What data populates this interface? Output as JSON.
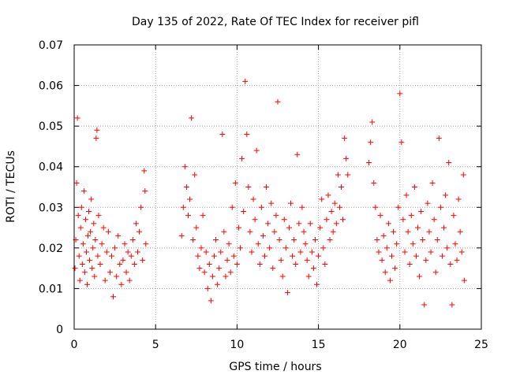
{
  "chart_data": {
    "type": "scatter",
    "title": "Day 135 of 2022, Rate Of TEC Index for receiver pifl",
    "xlabel": "GPS time / hours",
    "ylabel": "ROTI / TECUs",
    "xlim": [
      0,
      25
    ],
    "ylim": [
      0,
      0.07
    ],
    "xticks": [
      "0",
      "5",
      "10",
      "15",
      "20",
      "25"
    ],
    "yticks": [
      "0",
      "0.01",
      "0.02",
      "0.03",
      "0.04",
      "0.05",
      "0.06",
      "0.07"
    ],
    "grid": true,
    "marker": "+",
    "color": "#ff0000",
    "series": [
      {
        "points": [
          [
            0.05,
            0.015
          ],
          [
            0.1,
            0.022
          ],
          [
            0.15,
            0.036
          ],
          [
            0.2,
            0.052
          ],
          [
            0.25,
            0.028
          ],
          [
            0.3,
            0.018
          ],
          [
            0.35,
            0.012
          ],
          [
            0.4,
            0.025
          ],
          [
            0.45,
            0.03
          ],
          [
            0.5,
            0.016
          ],
          [
            0.55,
            0.021
          ],
          [
            0.6,
            0.034
          ],
          [
            0.65,
            0.014
          ],
          [
            0.7,
            0.027
          ],
          [
            0.75,
            0.019
          ],
          [
            0.8,
            0.011
          ],
          [
            0.85,
            0.023
          ],
          [
            0.9,
            0.029
          ],
          [
            0.95,
            0.017
          ],
          [
            1.0,
            0.024
          ],
          [
            1.05,
            0.032
          ],
          [
            1.1,
            0.015
          ],
          [
            1.15,
            0.02
          ],
          [
            1.2,
            0.026
          ],
          [
            1.25,
            0.013
          ],
          [
            1.3,
            0.022
          ],
          [
            1.35,
            0.047
          ],
          [
            1.4,
            0.049
          ],
          [
            1.45,
            0.018
          ],
          [
            1.5,
            0.028
          ],
          [
            1.6,
            0.016
          ],
          [
            1.7,
            0.021
          ],
          [
            1.8,
            0.025
          ],
          [
            1.9,
            0.012
          ],
          [
            2.0,
            0.019
          ],
          [
            2.1,
            0.024
          ],
          [
            2.2,
            0.014
          ],
          [
            2.3,
            0.018
          ],
          [
            2.4,
            0.008
          ],
          [
            2.5,
            0.02
          ],
          [
            2.6,
            0.013
          ],
          [
            2.7,
            0.023
          ],
          [
            2.8,
            0.016
          ],
          [
            2.9,
            0.011
          ],
          [
            3.0,
            0.017
          ],
          [
            3.1,
            0.021
          ],
          [
            3.2,
            0.014
          ],
          [
            3.3,
            0.019
          ],
          [
            3.4,
            0.012
          ],
          [
            3.5,
            0.018
          ],
          [
            3.6,
            0.022
          ],
          [
            3.7,
            0.016
          ],
          [
            3.8,
            0.026
          ],
          [
            3.9,
            0.019
          ],
          [
            4.0,
            0.024
          ],
          [
            4.1,
            0.03
          ],
          [
            4.2,
            0.017
          ],
          [
            4.3,
            0.039
          ],
          [
            4.35,
            0.034
          ],
          [
            4.4,
            0.021
          ],
          [
            6.6,
            0.023
          ],
          [
            6.7,
            0.03
          ],
          [
            6.8,
            0.04
          ],
          [
            6.9,
            0.035
          ],
          [
            7.0,
            0.028
          ],
          [
            7.1,
            0.032
          ],
          [
            7.2,
            0.052
          ],
          [
            7.3,
            0.022
          ],
          [
            7.4,
            0.038
          ],
          [
            7.5,
            0.025
          ],
          [
            7.6,
            0.018
          ],
          [
            7.7,
            0.015
          ],
          [
            7.8,
            0.02
          ],
          [
            7.9,
            0.028
          ],
          [
            8.0,
            0.014
          ],
          [
            8.1,
            0.019
          ],
          [
            8.2,
            0.01
          ],
          [
            8.3,
            0.016
          ],
          [
            8.4,
            0.007
          ],
          [
            8.5,
            0.013
          ],
          [
            8.6,
            0.018
          ],
          [
            8.7,
            0.022
          ],
          [
            8.8,
            0.011
          ],
          [
            8.9,
            0.015
          ],
          [
            9.0,
            0.019
          ],
          [
            9.1,
            0.048
          ],
          [
            9.2,
            0.024
          ],
          [
            9.3,
            0.013
          ],
          [
            9.4,
            0.017
          ],
          [
            9.5,
            0.021
          ],
          [
            9.6,
            0.014
          ],
          [
            9.7,
            0.03
          ],
          [
            9.8,
            0.018
          ],
          [
            9.9,
            0.036
          ],
          [
            10.0,
            0.016
          ],
          [
            10.1,
            0.025
          ],
          [
            10.2,
            0.02
          ],
          [
            10.3,
            0.042
          ],
          [
            10.4,
            0.029
          ],
          [
            10.5,
            0.061
          ],
          [
            10.6,
            0.048
          ],
          [
            10.7,
            0.035
          ],
          [
            10.8,
            0.024
          ],
          [
            10.9,
            0.019
          ],
          [
            11.0,
            0.032
          ],
          [
            11.1,
            0.027
          ],
          [
            11.2,
            0.044
          ],
          [
            11.3,
            0.021
          ],
          [
            11.4,
            0.016
          ],
          [
            11.5,
            0.03
          ],
          [
            11.6,
            0.023
          ],
          [
            11.7,
            0.018
          ],
          [
            11.8,
            0.035
          ],
          [
            11.9,
            0.026
          ],
          [
            12.0,
            0.02
          ],
          [
            12.1,
            0.031
          ],
          [
            12.2,
            0.015
          ],
          [
            12.3,
            0.024
          ],
          [
            12.4,
            0.028
          ],
          [
            12.5,
            0.056
          ],
          [
            12.6,
            0.022
          ],
          [
            12.7,
            0.017
          ],
          [
            12.8,
            0.013
          ],
          [
            12.9,
            0.027
          ],
          [
            13.0,
            0.02
          ],
          [
            13.1,
            0.009
          ],
          [
            13.2,
            0.025
          ],
          [
            13.3,
            0.031
          ],
          [
            13.4,
            0.018
          ],
          [
            13.5,
            0.022
          ],
          [
            13.6,
            0.016
          ],
          [
            13.7,
            0.043
          ],
          [
            13.8,
            0.026
          ],
          [
            13.9,
            0.019
          ],
          [
            14.0,
            0.03
          ],
          [
            14.1,
            0.024
          ],
          [
            14.2,
            0.021
          ],
          [
            14.3,
            0.017
          ],
          [
            14.4,
            0.013
          ],
          [
            14.5,
            0.026
          ],
          [
            14.6,
            0.019
          ],
          [
            14.7,
            0.015
          ],
          [
            14.8,
            0.022
          ],
          [
            14.9,
            0.011
          ],
          [
            15.0,
            0.018
          ],
          [
            15.1,
            0.025
          ],
          [
            15.2,
            0.032
          ],
          [
            15.3,
            0.02
          ],
          [
            15.4,
            0.016
          ],
          [
            15.5,
            0.027
          ],
          [
            15.6,
            0.033
          ],
          [
            15.7,
            0.022
          ],
          [
            15.8,
            0.029
          ],
          [
            15.9,
            0.024
          ],
          [
            16.0,
            0.031
          ],
          [
            16.1,
            0.026
          ],
          [
            16.2,
            0.038
          ],
          [
            16.3,
            0.03
          ],
          [
            16.4,
            0.035
          ],
          [
            16.5,
            0.027
          ],
          [
            16.6,
            0.047
          ],
          [
            16.7,
            0.042
          ],
          [
            16.8,
            0.038
          ],
          [
            18.1,
            0.041
          ],
          [
            18.2,
            0.046
          ],
          [
            18.3,
            0.051
          ],
          [
            18.4,
            0.036
          ],
          [
            18.5,
            0.03
          ],
          [
            18.6,
            0.022
          ],
          [
            18.7,
            0.019
          ],
          [
            18.8,
            0.028
          ],
          [
            18.9,
            0.017
          ],
          [
            19.0,
            0.023
          ],
          [
            19.1,
            0.014
          ],
          [
            19.2,
            0.02
          ],
          [
            19.3,
            0.026
          ],
          [
            19.4,
            0.012
          ],
          [
            19.5,
            0.018
          ],
          [
            19.6,
            0.024
          ],
          [
            19.7,
            0.015
          ],
          [
            19.8,
            0.021
          ],
          [
            19.9,
            0.03
          ],
          [
            20.0,
            0.058
          ],
          [
            20.1,
            0.046
          ],
          [
            20.2,
            0.027
          ],
          [
            20.3,
            0.019
          ],
          [
            20.4,
            0.033
          ],
          [
            20.5,
            0.024
          ],
          [
            20.6,
            0.016
          ],
          [
            20.7,
            0.028
          ],
          [
            20.8,
            0.021
          ],
          [
            20.9,
            0.035
          ],
          [
            21.0,
            0.018
          ],
          [
            21.1,
            0.025
          ],
          [
            21.2,
            0.013
          ],
          [
            21.3,
            0.029
          ],
          [
            21.4,
            0.022
          ],
          [
            21.5,
            0.006
          ],
          [
            21.6,
            0.017
          ],
          [
            21.7,
            0.031
          ],
          [
            21.8,
            0.024
          ],
          [
            21.9,
            0.019
          ],
          [
            22.0,
            0.036
          ],
          [
            22.1,
            0.027
          ],
          [
            22.2,
            0.014
          ],
          [
            22.3,
            0.022
          ],
          [
            22.4,
            0.047
          ],
          [
            22.5,
            0.03
          ],
          [
            22.6,
            0.018
          ],
          [
            22.7,
            0.025
          ],
          [
            22.8,
            0.033
          ],
          [
            22.9,
            0.02
          ],
          [
            23.0,
            0.041
          ],
          [
            23.1,
            0.016
          ],
          [
            23.2,
            0.006
          ],
          [
            23.3,
            0.028
          ],
          [
            23.4,
            0.021
          ],
          [
            23.5,
            0.017
          ],
          [
            23.6,
            0.032
          ],
          [
            23.7,
            0.024
          ],
          [
            23.8,
            0.019
          ],
          [
            23.9,
            0.038
          ],
          [
            23.95,
            0.012
          ]
        ]
      }
    ]
  }
}
